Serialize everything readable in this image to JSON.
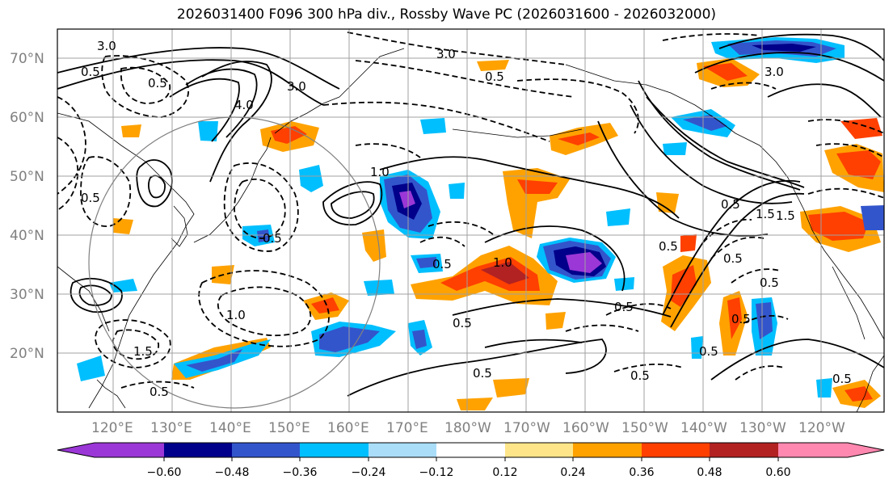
{
  "title": "2026031400 F096 300 hPa div., Rossby Wave PC (2026031600 - 2026032000)",
  "latitude_labels": [
    "70°N",
    "60°N",
    "50°N",
    "40°N",
    "30°N",
    "20°N"
  ],
  "longitude_labels": [
    "120°E",
    "130°E",
    "140°E",
    "150°E",
    "160°E",
    "170°E",
    "180°W",
    "170°W",
    "160°W",
    "150°W",
    "140°W",
    "130°W",
    "120°W"
  ],
  "colorbar": {
    "colors": [
      "#9a37d6",
      "#00008b",
      "#3355cc",
      "#00bfff",
      "#aaddf8",
      "#ffffff",
      "#ffe58a",
      "#ffa200",
      "#ff4000",
      "#b22222",
      "#ff88b0"
    ],
    "tick_labels": [
      "−0.60",
      "−0.48",
      "−0.36",
      "−0.24",
      "−0.12",
      "0.12",
      "0.24",
      "0.36",
      "0.48",
      "0.60"
    ]
  },
  "contour_labels": [
    "0.5",
    "0.5",
    "3.0",
    "4.0",
    "3.0",
    "1.0",
    "3.0",
    "3.0",
    "0.5",
    "1.0",
    "1.5",
    "0.5",
    "0.5",
    "0.5",
    "0.5",
    "1.0",
    "0.5",
    "0.5",
    "0.5",
    "1.5",
    "0.5",
    "0.5",
    "0.5",
    "0.5",
    "0.5",
    "0.5",
    "0.5",
    "1.5",
    "0.5"
  ]
}
